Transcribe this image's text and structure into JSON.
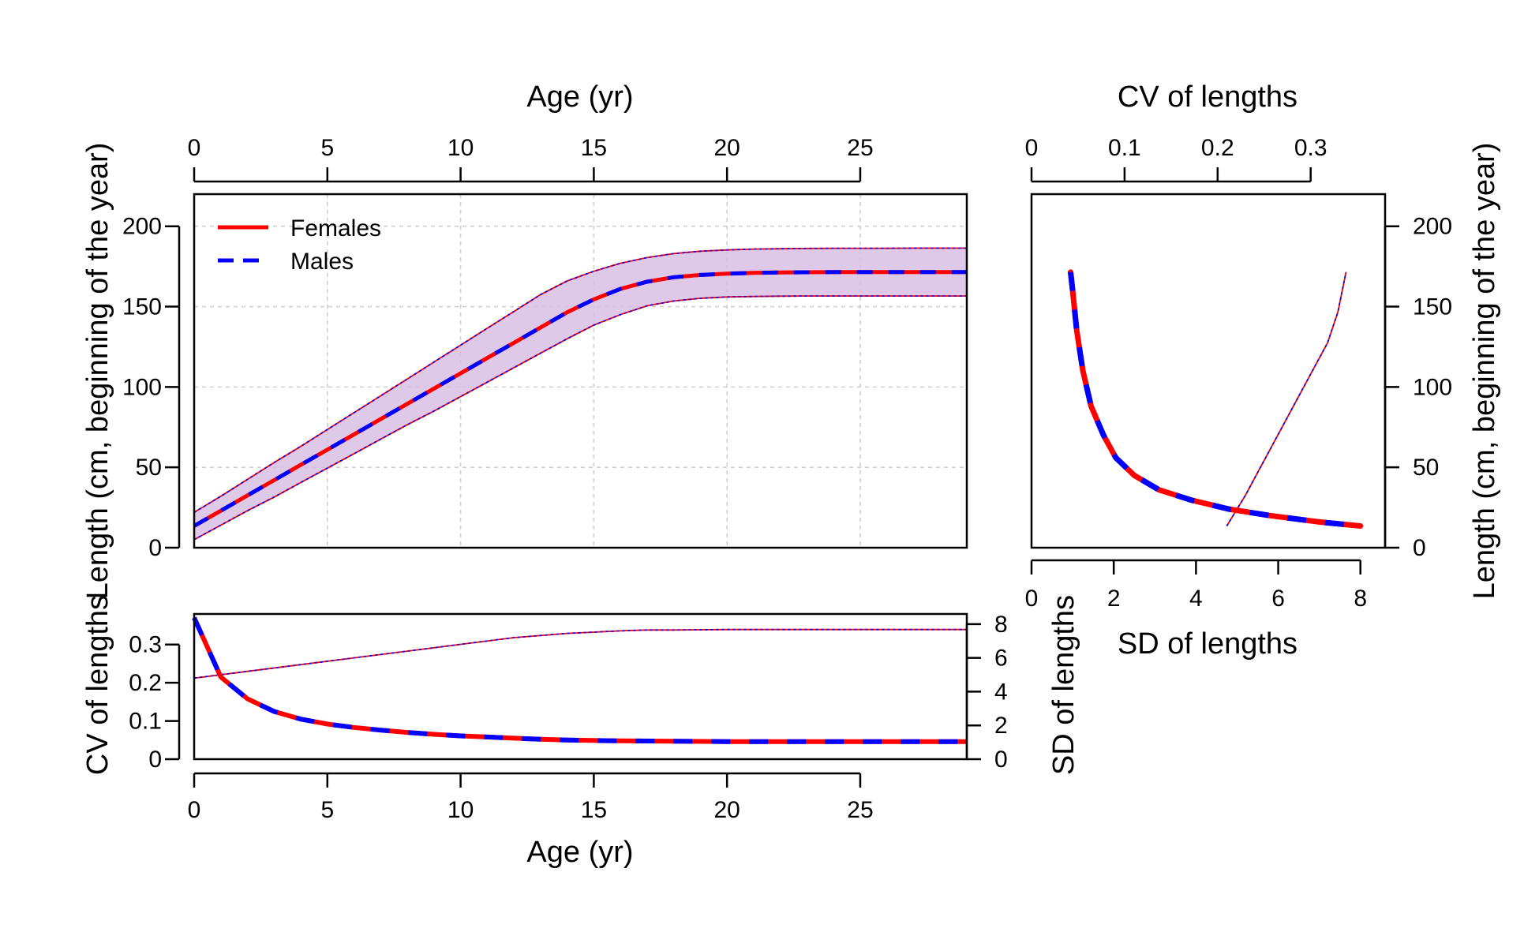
{
  "chart_data": [
    {
      "panel": "length-at-age",
      "type": "line",
      "xlabel": "Age (yr)",
      "ylabel": "Length (cm, beginning of the year)",
      "xlim": [
        0,
        29
      ],
      "ylim": [
        0,
        220
      ],
      "xticks": [
        0,
        5,
        10,
        15,
        20,
        25
      ],
      "yticks": [
        0,
        50,
        100,
        150,
        200
      ],
      "grid": true,
      "legend_position": "top-left",
      "series": [
        {
          "name": "Females",
          "color": "#ff0000",
          "style": "solid",
          "x": [
            0,
            1,
            2,
            3,
            4,
            5,
            6,
            7,
            8,
            9,
            10,
            11,
            12,
            13,
            14,
            15,
            16,
            17,
            18,
            19,
            20,
            21,
            22,
            23,
            24,
            25,
            26,
            27,
            28,
            29
          ],
          "values": [
            13.5,
            23,
            32.5,
            42,
            51.5,
            61,
            70.5,
            80,
            89.5,
            99,
            108.5,
            118,
            127.5,
            137,
            146.5,
            154.5,
            161,
            165.5,
            168.3,
            169.7,
            170.5,
            171,
            171.3,
            171.4,
            171.5,
            171.5,
            171.5,
            171.5,
            171.5,
            171.5
          ],
          "upper": [
            22,
            32,
            42.5,
            53,
            63,
            73.5,
            84,
            94.5,
            105,
            115.5,
            126,
            136.5,
            147,
            157.5,
            166,
            172,
            177,
            180.5,
            183,
            184.5,
            185.3,
            185.8,
            186,
            186.2,
            186.3,
            186.3,
            186.3,
            186.4,
            186.4,
            186.4
          ],
          "lower": [
            5,
            14,
            23,
            31.5,
            40.5,
            49.5,
            58.5,
            67.5,
            76.5,
            85,
            94,
            103,
            112,
            121,
            130,
            138.5,
            145,
            150.5,
            153.5,
            155.2,
            156,
            156.3,
            156.5,
            156.6,
            156.6,
            156.6,
            156.6,
            156.6,
            156.6,
            156.6
          ]
        },
        {
          "name": "Males",
          "color": "#0000ff",
          "style": "dashed",
          "x": [
            0,
            1,
            2,
            3,
            4,
            5,
            6,
            7,
            8,
            9,
            10,
            11,
            12,
            13,
            14,
            15,
            16,
            17,
            18,
            19,
            20,
            21,
            22,
            23,
            24,
            25,
            26,
            27,
            28,
            29
          ],
          "values": [
            13.5,
            23,
            32.5,
            42,
            51.5,
            61,
            70.5,
            80,
            89.5,
            99,
            108.5,
            118,
            127.5,
            137,
            146.5,
            154.5,
            161,
            165.5,
            168.3,
            169.7,
            170.5,
            171,
            171.3,
            171.4,
            171.5,
            171.5,
            171.5,
            171.5,
            171.5,
            171.5
          ]
        }
      ]
    },
    {
      "panel": "cv-sd-at-age",
      "type": "line",
      "xlabel": "Age (yr)",
      "ylabel_left": "CV of lengths",
      "ylabel_right": "SD of lengths",
      "xlim": [
        0,
        29
      ],
      "ylim_left": [
        0,
        0.38
      ],
      "ylim_right": [
        0,
        8.6
      ],
      "xticks": [
        0,
        5,
        10,
        15,
        20,
        25
      ],
      "yticks_left": [
        0,
        0.1,
        0.2,
        0.3
      ],
      "yticks_right": [
        0,
        2,
        4,
        6,
        8
      ],
      "cv": {
        "x": [
          0,
          1,
          2,
          3,
          4,
          5,
          6,
          7,
          8,
          9,
          10,
          11,
          12,
          13,
          14,
          15,
          16,
          18,
          20,
          22,
          24,
          26,
          29
        ],
        "values": [
          0.37,
          0.215,
          0.158,
          0.125,
          0.105,
          0.092,
          0.083,
          0.076,
          0.07,
          0.065,
          0.061,
          0.058,
          0.055,
          0.052,
          0.05,
          0.049,
          0.048,
          0.047,
          0.046,
          0.046,
          0.046,
          0.046,
          0.046
        ]
      },
      "sd": {
        "x": [
          0,
          2,
          4,
          6,
          8,
          10,
          12,
          14,
          16,
          17,
          18,
          20,
          22,
          25,
          29
        ],
        "values": [
          4.8,
          5.2,
          5.6,
          6.0,
          6.4,
          6.8,
          7.2,
          7.45,
          7.6,
          7.65,
          7.65,
          7.68,
          7.68,
          7.68,
          7.68
        ]
      }
    },
    {
      "panel": "length-vs-cv-sd",
      "type": "line",
      "xlabel_top": "CV of lengths",
      "xlabel_bottom": "SD of lengths",
      "ylabel": "Length (cm, beginning of the year)",
      "xlim_top": [
        0,
        0.38
      ],
      "xlim_bottom": [
        0,
        8.6
      ],
      "ylim": [
        0,
        220
      ],
      "xticks_top": [
        0,
        0.1,
        0.2,
        0.3
      ],
      "xticks_bottom": [
        0,
        2,
        4,
        6,
        8
      ],
      "yticks": [
        0,
        50,
        100,
        150,
        200
      ],
      "cv_curve": {
        "sd": [
          0.95,
          1.0,
          1.1,
          1.25,
          1.45,
          1.75,
          2.05,
          2.5,
          3.1,
          3.9,
          4.8,
          5.8,
          7.0,
          8.0
        ],
        "length": [
          171.5,
          160,
          135,
          110,
          88,
          70,
          56,
          45,
          36,
          29.5,
          24,
          20,
          16,
          13.5
        ]
      },
      "sd_line": {
        "sd": [
          4.75,
          5.2,
          5.6,
          6.0,
          6.4,
          6.8,
          7.2,
          7.45,
          7.65
        ],
        "length": [
          13.5,
          32.5,
          51.5,
          70.5,
          89.5,
          108.5,
          127.5,
          146.5,
          171.5
        ]
      }
    }
  ]
}
